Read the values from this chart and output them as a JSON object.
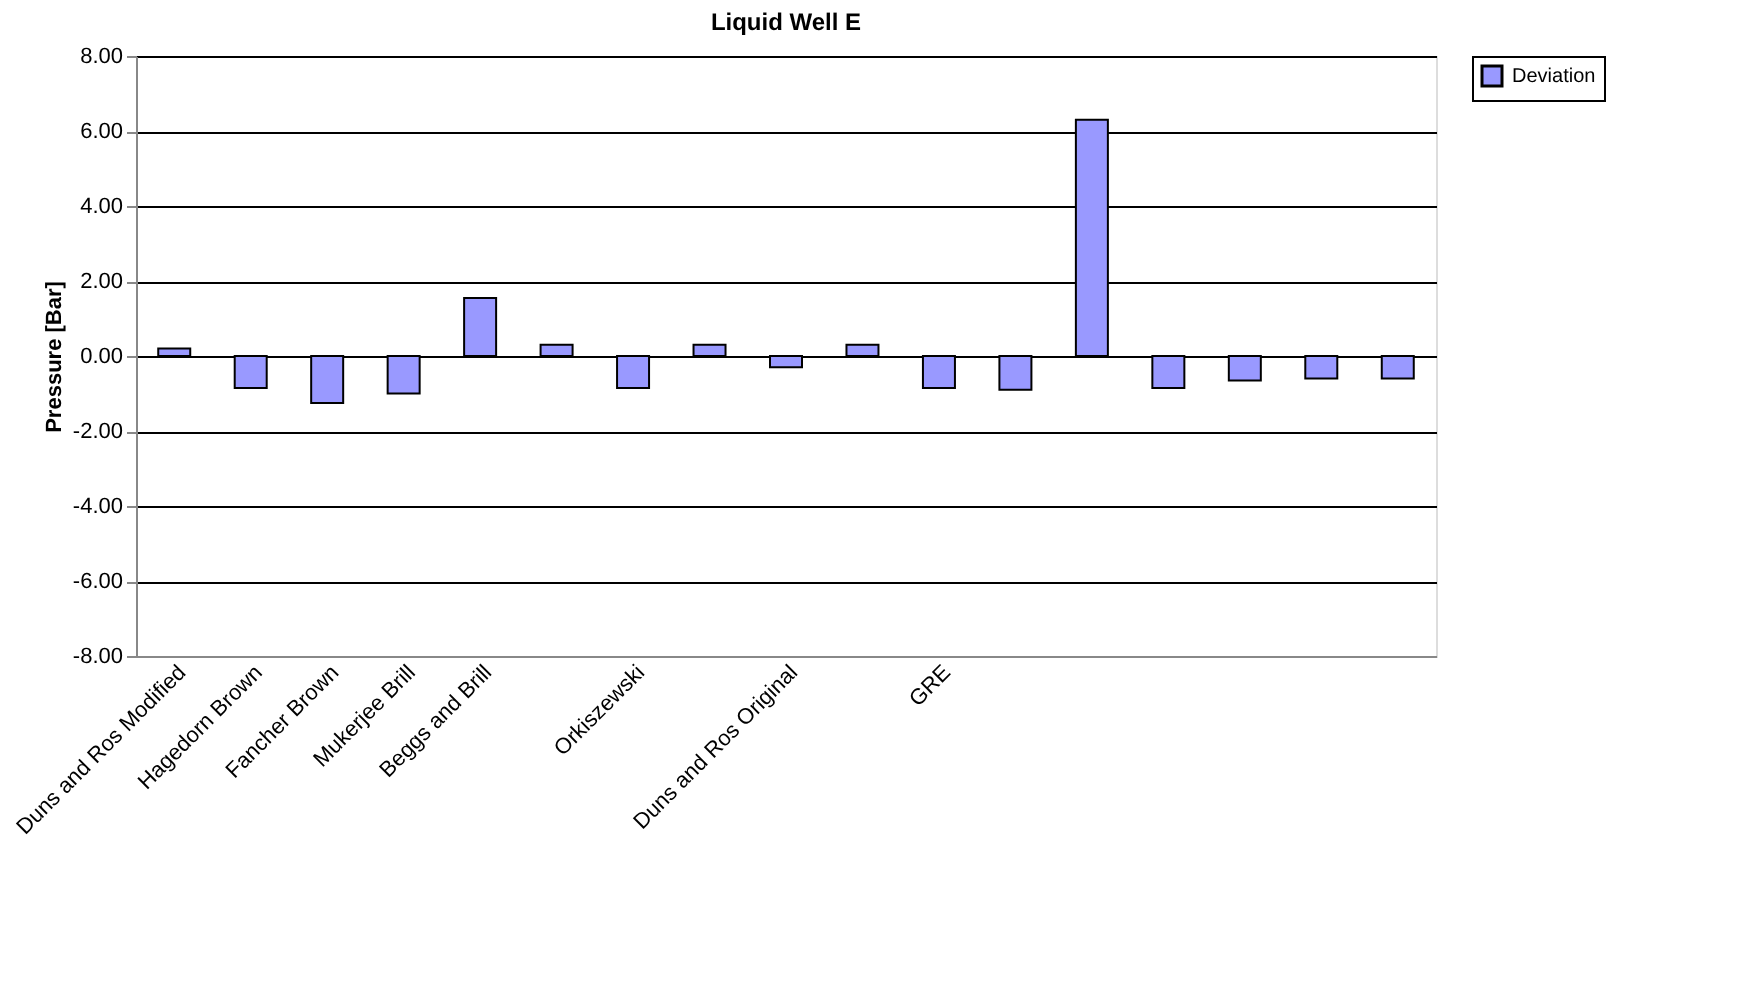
{
  "chart_data": {
    "type": "bar",
    "title": "Liquid Well E",
    "ylabel": "Pressure [Bar]",
    "categories": [
      "Duns and Ros Modified",
      "Hagedorn Brown",
      "Fancher Brown",
      "Mukerjee Brill",
      "Beggs and Brill",
      null,
      "Orkiszewski",
      null,
      "Duns and Ros Original",
      null,
      "GRE",
      null,
      null,
      null,
      null,
      null,
      null
    ],
    "series": [
      {
        "name": "Deviation",
        "color": "#9999ff",
        "values": [
          0.2,
          -0.85,
          -1.25,
          -1.0,
          1.55,
          0.3,
          -0.85,
          0.3,
          -0.3,
          0.3,
          -0.85,
          -0.9,
          6.3,
          -0.85,
          -0.65,
          -0.6,
          -0.6
        ]
      }
    ],
    "ylim": [
      -8,
      8
    ],
    "yticks": [
      {
        "value": -8,
        "label": "-8.00"
      },
      {
        "value": -6,
        "label": "-6.00"
      },
      {
        "value": -4,
        "label": "-4.00"
      },
      {
        "value": -2,
        "label": "-2.00"
      },
      {
        "value": 0,
        "label": "0.00"
      },
      {
        "value": 2,
        "label": "2.00"
      },
      {
        "value": 4,
        "label": "4.00"
      },
      {
        "value": 6,
        "label": "6.00"
      },
      {
        "value": 8,
        "label": "8.00"
      }
    ],
    "grid": "y",
    "legend": "right"
  }
}
